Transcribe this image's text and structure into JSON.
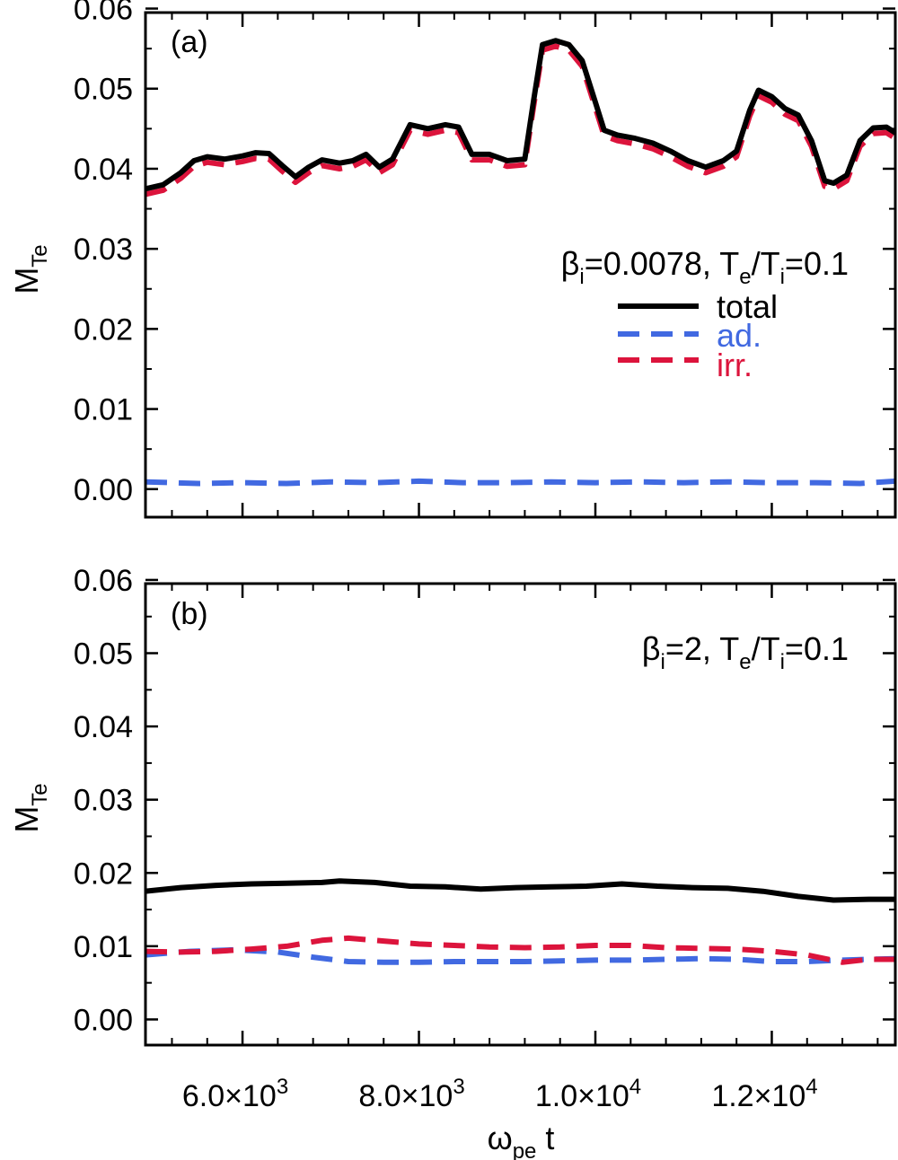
{
  "figure": {
    "x_label": {
      "main": "ω",
      "sub": "pe",
      "tail": " t"
    }
  },
  "chart_data": [
    {
      "type": "line",
      "panel_label": "(a)",
      "annotation": {
        "beta": "β",
        "beta_sub": "i",
        "beta_val": "=0.0078, T",
        "te_sub": "e",
        "slash": "/T",
        "ti_sub": "i",
        "ratio_val": "=0.1"
      },
      "ylabel": {
        "main": "M",
        "sub": "Te"
      },
      "xlim": [
        4900,
        13400
      ],
      "ylim": [
        -0.0035,
        0.0595
      ],
      "yticks": [
        0.0,
        0.01,
        0.02,
        0.03,
        0.04,
        0.05,
        0.06
      ],
      "ytick_labels": [
        "0.00",
        "0.01",
        "0.02",
        "0.03",
        "0.04",
        "0.05",
        "0.06"
      ],
      "xticks": [
        6000,
        8000,
        10000,
        12000
      ],
      "legend": {
        "position": "upper-right",
        "entries": [
          "total",
          "ad.",
          "irr."
        ]
      },
      "series": [
        {
          "name": "total",
          "color": "#000000",
          "dash": "solid",
          "x": [
            4900,
            5100,
            5300,
            5450,
            5600,
            5800,
            6000,
            6150,
            6300,
            6450,
            6600,
            6750,
            6900,
            7100,
            7250,
            7400,
            7550,
            7700,
            7900,
            8100,
            8300,
            8450,
            8600,
            8800,
            9000,
            9200,
            9300,
            9400,
            9550,
            9700,
            9850,
            10000,
            10100,
            10250,
            10450,
            10650,
            10850,
            11050,
            11250,
            11450,
            11600,
            11750,
            11850,
            12000,
            12150,
            12300,
            12450,
            12600,
            12700,
            12850,
            13000,
            13150,
            13300,
            13400
          ],
          "y": [
            0.0375,
            0.038,
            0.0395,
            0.041,
            0.0415,
            0.0412,
            0.0416,
            0.042,
            0.0419,
            0.0404,
            0.039,
            0.0402,
            0.0411,
            0.0407,
            0.041,
            0.0418,
            0.0402,
            0.0412,
            0.0455,
            0.045,
            0.0455,
            0.0452,
            0.0418,
            0.0418,
            0.041,
            0.0412,
            0.0485,
            0.0555,
            0.056,
            0.0555,
            0.0535,
            0.0483,
            0.0448,
            0.0442,
            0.0438,
            0.0432,
            0.0422,
            0.041,
            0.0402,
            0.041,
            0.0422,
            0.0473,
            0.0498,
            0.049,
            0.0475,
            0.0467,
            0.0435,
            0.0385,
            0.0382,
            0.0392,
            0.0435,
            0.0451,
            0.0452,
            0.0445
          ]
        },
        {
          "name": "ad.",
          "color": "#4169e1",
          "dash": "dashed",
          "x": [
            4900,
            5500,
            6000,
            6500,
            7000,
            7500,
            8000,
            8500,
            9000,
            9500,
            10000,
            10500,
            11000,
            11500,
            12000,
            12500,
            13000,
            13400
          ],
          "y": [
            0.0009,
            0.0007,
            0.0008,
            0.0007,
            0.0009,
            0.0008,
            0.001,
            0.0008,
            0.0008,
            0.0009,
            0.0008,
            0.0009,
            0.0008,
            0.0009,
            0.0008,
            0.0008,
            0.0007,
            0.001
          ]
        },
        {
          "name": "irr.",
          "color": "#dc143c",
          "dash": "dashed",
          "x": [
            4900,
            5100,
            5300,
            5450,
            5600,
            5800,
            6000,
            6150,
            6300,
            6450,
            6600,
            6750,
            6900,
            7100,
            7250,
            7400,
            7550,
            7700,
            7900,
            8100,
            8300,
            8450,
            8600,
            8800,
            9000,
            9200,
            9300,
            9400,
            9550,
            9700,
            9850,
            10000,
            10100,
            10250,
            10450,
            10650,
            10850,
            11050,
            11250,
            11450,
            11600,
            11750,
            11850,
            12000,
            12150,
            12300,
            12450,
            12600,
            12700,
            12850,
            13000,
            13150,
            13300,
            13400
          ],
          "y": [
            0.0368,
            0.0373,
            0.0388,
            0.0403,
            0.0408,
            0.0405,
            0.0409,
            0.0413,
            0.0412,
            0.0397,
            0.0383,
            0.0395,
            0.0404,
            0.04,
            0.0403,
            0.0411,
            0.0395,
            0.0405,
            0.0448,
            0.0443,
            0.0448,
            0.0445,
            0.0411,
            0.0411,
            0.0403,
            0.0405,
            0.0478,
            0.0548,
            0.0553,
            0.0548,
            0.0528,
            0.0476,
            0.0441,
            0.0435,
            0.0431,
            0.0425,
            0.0415,
            0.0403,
            0.0395,
            0.0403,
            0.0415,
            0.0466,
            0.0491,
            0.0483,
            0.0468,
            0.046,
            0.0428,
            0.0378,
            0.0375,
            0.0385,
            0.0428,
            0.0444,
            0.0445,
            0.0438
          ]
        }
      ]
    },
    {
      "type": "line",
      "panel_label": "(b)",
      "annotation": {
        "beta": "β",
        "beta_sub": "i",
        "beta_val": "=2, T",
        "te_sub": "e",
        "slash": "/T",
        "ti_sub": "i",
        "ratio_val": "=0.1"
      },
      "ylabel": {
        "main": "M",
        "sub": "Te"
      },
      "xlim": [
        4900,
        13400
      ],
      "ylim": [
        -0.0035,
        0.0595
      ],
      "yticks": [
        0.0,
        0.01,
        0.02,
        0.03,
        0.04,
        0.05,
        0.06
      ],
      "ytick_labels": [
        "0.00",
        "0.01",
        "0.02",
        "0.03",
        "0.04",
        "0.05",
        "0.06"
      ],
      "xticks": [
        6000,
        8000,
        10000,
        12000
      ],
      "xtick_labels": [
        {
          "mant": "6.0×10",
          "exp": "3"
        },
        {
          "mant": "8.0×10",
          "exp": "3"
        },
        {
          "mant": "1.0×10",
          "exp": "4"
        },
        {
          "mant": "1.2×10",
          "exp": "4"
        }
      ],
      "series": [
        {
          "name": "total",
          "color": "#000000",
          "dash": "solid",
          "x": [
            4900,
            5300,
            5700,
            6100,
            6500,
            6900,
            7100,
            7500,
            7900,
            8300,
            8700,
            9100,
            9500,
            9900,
            10300,
            10700,
            11100,
            11500,
            11900,
            12300,
            12700,
            13100,
            13400
          ],
          "y": [
            0.0175,
            0.018,
            0.0183,
            0.0185,
            0.0186,
            0.0187,
            0.0189,
            0.0187,
            0.0182,
            0.0181,
            0.0178,
            0.018,
            0.0181,
            0.0182,
            0.0185,
            0.0182,
            0.018,
            0.0179,
            0.0175,
            0.0168,
            0.0163,
            0.0164,
            0.0164
          ]
        },
        {
          "name": "ad.",
          "color": "#4169e1",
          "dash": "dashed",
          "x": [
            4900,
            5400,
            5900,
            6400,
            6800,
            7200,
            7600,
            8000,
            8400,
            8800,
            9200,
            9600,
            10000,
            10400,
            10800,
            11200,
            11600,
            12000,
            12400,
            12800,
            13100,
            13400
          ],
          "y": [
            0.0088,
            0.0093,
            0.0095,
            0.0092,
            0.0085,
            0.0079,
            0.0078,
            0.0078,
            0.0079,
            0.0079,
            0.0079,
            0.008,
            0.0081,
            0.0081,
            0.0082,
            0.0083,
            0.0082,
            0.0079,
            0.0079,
            0.0081,
            0.0082,
            0.0083
          ]
        },
        {
          "name": "irr.",
          "color": "#dc143c",
          "dash": "dashed",
          "x": [
            4900,
            5300,
            5700,
            6100,
            6500,
            6900,
            7200,
            7600,
            8000,
            8400,
            8800,
            9200,
            9600,
            10000,
            10400,
            10800,
            11200,
            11600,
            12000,
            12400,
            12800,
            13100,
            13400
          ],
          "y": [
            0.0093,
            0.0092,
            0.0093,
            0.0096,
            0.01,
            0.0108,
            0.0111,
            0.0107,
            0.0103,
            0.0101,
            0.0099,
            0.0098,
            0.0099,
            0.0101,
            0.0101,
            0.0098,
            0.0097,
            0.0096,
            0.0093,
            0.0088,
            0.0078,
            0.0082,
            0.0082
          ]
        }
      ]
    }
  ]
}
